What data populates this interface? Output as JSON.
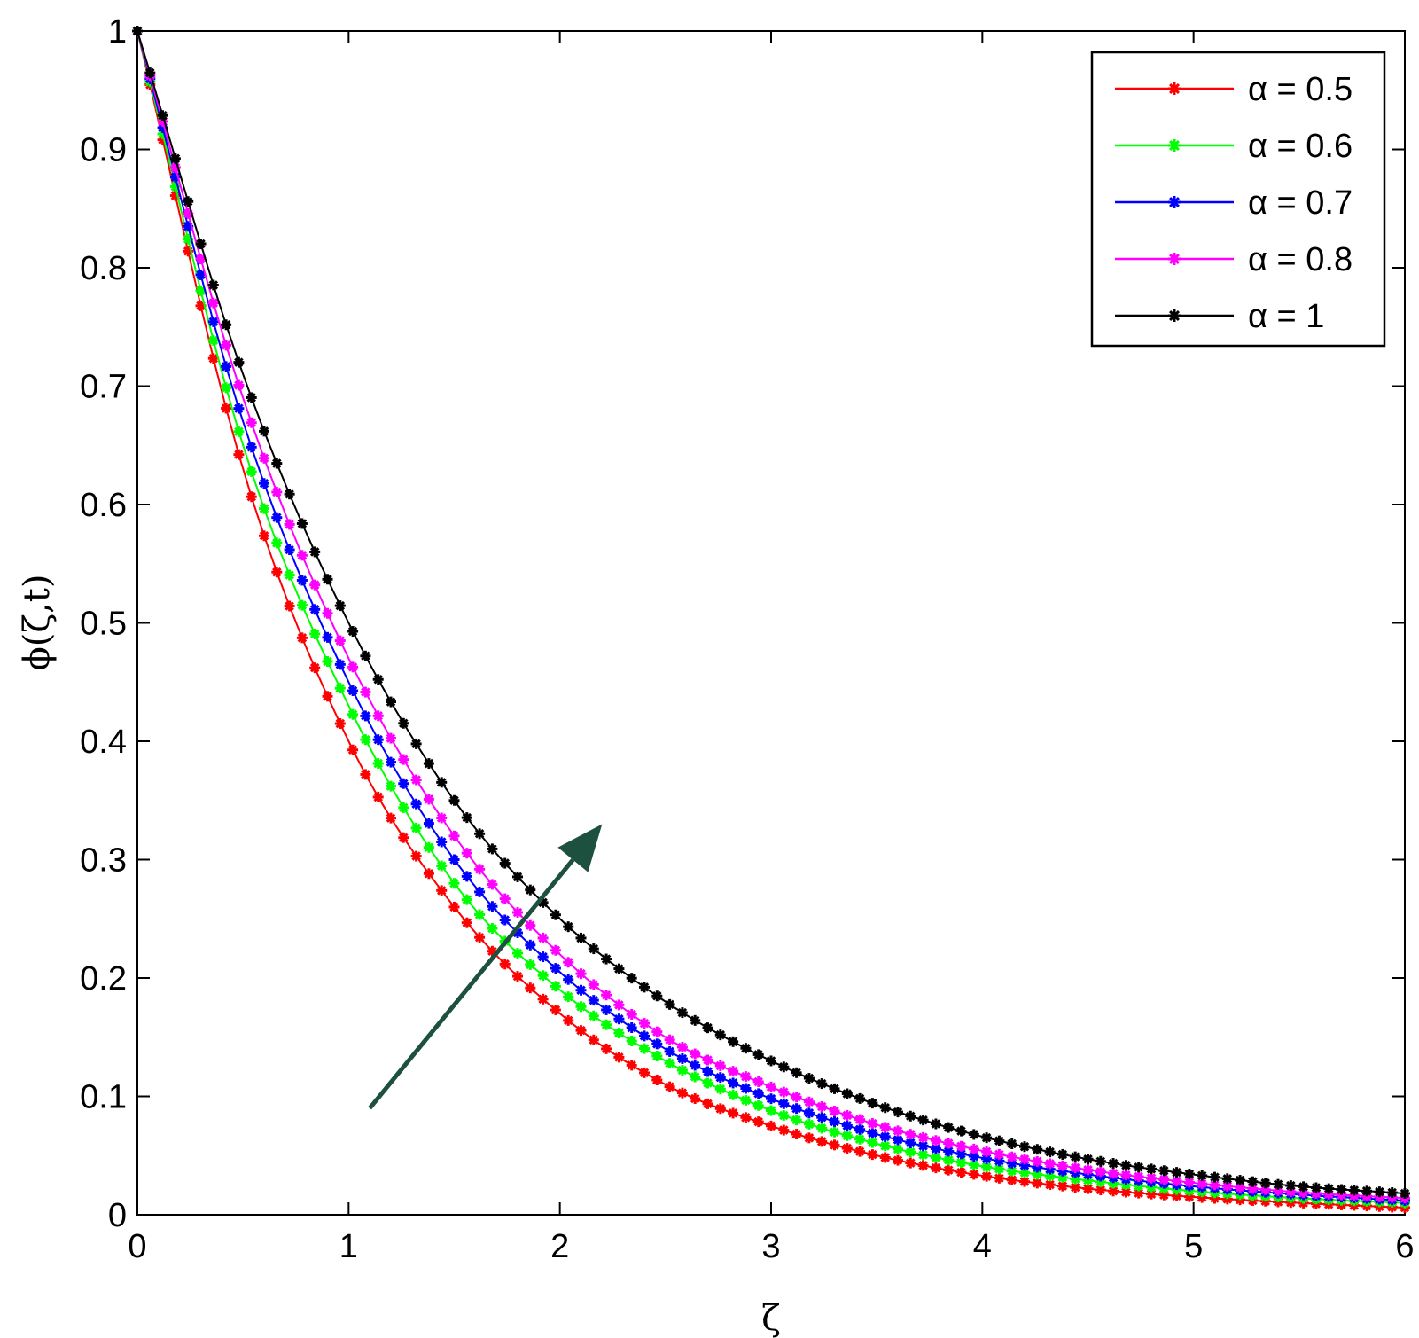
{
  "chart_data": {
    "type": "line",
    "title": "",
    "xlabel": "ζ",
    "ylabel": "ϕ(ζ,t)",
    "xlim": [
      0,
      6
    ],
    "ylim": [
      0,
      1
    ],
    "xticks": [
      "0",
      "1",
      "2",
      "3",
      "4",
      "5",
      "6"
    ],
    "yticks": [
      "0",
      "0.1",
      "0.2",
      "0.3",
      "0.4",
      "0.5",
      "0.6",
      "0.7",
      "0.8",
      "0.9",
      "1"
    ],
    "grid": false,
    "legend_position": "top-right",
    "marker": "star",
    "x": [
      0,
      0.5,
      1,
      1.5,
      2,
      2.5,
      3,
      3.5,
      4,
      4.5,
      5,
      5.5,
      6
    ],
    "series": [
      {
        "name": "α = 0.5",
        "color": "#ff0000",
        "values": [
          1.0,
          0.63,
          0.4,
          0.26,
          0.17,
          0.11,
          0.075,
          0.05,
          0.033,
          0.022,
          0.015,
          0.01,
          0.006
        ]
      },
      {
        "name": "α = 0.6",
        "color": "#00ff00",
        "values": [
          1.0,
          0.65,
          0.43,
          0.28,
          0.19,
          0.13,
          0.088,
          0.06,
          0.041,
          0.029,
          0.02,
          0.014,
          0.01
        ]
      },
      {
        "name": "α = 0.7",
        "color": "#0000ff",
        "values": [
          1.0,
          0.67,
          0.45,
          0.3,
          0.205,
          0.14,
          0.098,
          0.068,
          0.048,
          0.034,
          0.024,
          0.017,
          0.012
        ]
      },
      {
        "name": "α = 0.8",
        "color": "#ff00ff",
        "values": [
          1.0,
          0.69,
          0.47,
          0.32,
          0.22,
          0.15,
          0.108,
          0.076,
          0.054,
          0.038,
          0.027,
          0.019,
          0.014
        ]
      },
      {
        "name": "α = 1",
        "color": "#000000",
        "values": [
          1.0,
          0.71,
          0.5,
          0.35,
          0.25,
          0.18,
          0.13,
          0.093,
          0.066,
          0.047,
          0.034,
          0.024,
          0.018
        ]
      }
    ],
    "annotations": [
      {
        "type": "arrow",
        "from": [
          1.1,
          0.09
        ],
        "to": [
          2.2,
          0.33
        ],
        "color": "#1e5040"
      }
    ]
  }
}
